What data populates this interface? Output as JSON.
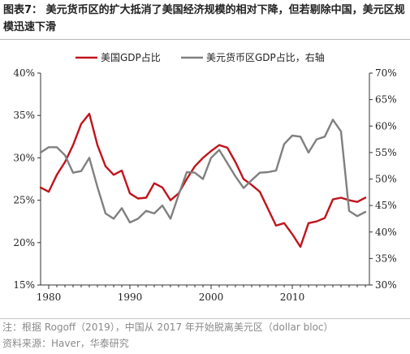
{
  "figure": {
    "title": "图表7：  美元货币区的扩大抵消了美国经济规模的相对下降，但若剔除中国，美元区规模迅速下滑",
    "note": "注：根据 Rogoff（2019），中国从 2017 年开始脱离美元区（dollar bloc）",
    "source": "资料来源：Haver，华泰研究"
  },
  "chart_data": {
    "type": "line",
    "title": "",
    "xlabel": "",
    "ylabel": "",
    "xlim": [
      1979,
      2019.5
    ],
    "x_ticks": [
      "1980",
      "1990",
      "2000",
      "2010"
    ],
    "left_axis": {
      "ylim": [
        15,
        40
      ],
      "ticks": [
        "15%",
        "20%",
        "25%",
        "30%",
        "35%",
        "40%"
      ]
    },
    "right_axis": {
      "ylim": [
        30,
        70
      ],
      "ticks": [
        "30%",
        "35%",
        "40%",
        "45%",
        "50%",
        "55%",
        "60%",
        "65%",
        "70%"
      ]
    },
    "legend_position": "top",
    "grid": false,
    "series": [
      {
        "name": "美国GDP占比",
        "axis": "left",
        "color": "#c0141c",
        "x": [
          1979,
          1980,
          1981,
          1982,
          1983,
          1984,
          1985,
          1986,
          1987,
          1988,
          1989,
          1990,
          1991,
          1992,
          1993,
          1994,
          1995,
          1996,
          1997,
          1998,
          1999,
          2000,
          2001,
          2002,
          2003,
          2004,
          2005,
          2006,
          2007,
          2008,
          2009,
          2010,
          2011,
          2012,
          2013,
          2014,
          2015,
          2016,
          2017,
          2018,
          2019
        ],
        "values": [
          26.5,
          26.0,
          28.0,
          29.5,
          31.5,
          34.0,
          35.2,
          31.5,
          29.0,
          28.0,
          28.5,
          25.8,
          25.2,
          25.3,
          27.0,
          26.5,
          25.0,
          25.8,
          27.5,
          29.0,
          30.0,
          30.8,
          31.5,
          31.2,
          29.5,
          27.5,
          26.8,
          26.0,
          24.0,
          22.0,
          22.3,
          21.0,
          19.5,
          22.3,
          22.5,
          22.9,
          25.1,
          25.3,
          25.0,
          24.8,
          25.3
        ]
      },
      {
        "name": "美元货币区GDP占比，右轴",
        "axis": "right",
        "color": "#808080",
        "x": [
          1979,
          1980,
          1981,
          1982,
          1983,
          1984,
          1985,
          1986,
          1987,
          1988,
          1989,
          1990,
          1991,
          1992,
          1993,
          1994,
          1995,
          1996,
          1997,
          1998,
          1999,
          2000,
          2001,
          2002,
          2003,
          2004,
          2005,
          2006,
          2007,
          2008,
          2009,
          2010,
          2011,
          2012,
          2013,
          2014,
          2015,
          2016,
          2017,
          2018,
          2019
        ],
        "values": [
          55.0,
          56.0,
          56.0,
          54.5,
          51.2,
          51.5,
          54.0,
          48.5,
          43.5,
          42.5,
          44.5,
          41.8,
          42.5,
          44.0,
          43.5,
          45.0,
          42.5,
          47.0,
          51.3,
          51.2,
          50.0,
          54.0,
          55.5,
          53.0,
          50.5,
          48.3,
          49.8,
          51.2,
          51.3,
          51.6,
          56.6,
          58.2,
          58.0,
          55.0,
          57.5,
          58.0,
          61.2,
          59.0,
          44.0,
          43.0,
          43.8
        ]
      }
    ]
  }
}
